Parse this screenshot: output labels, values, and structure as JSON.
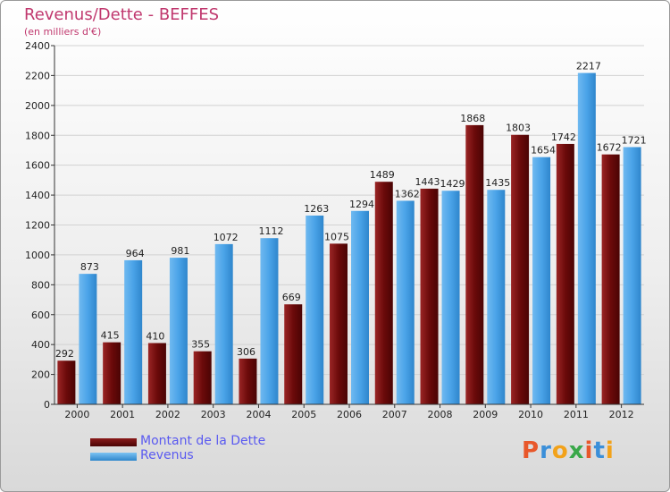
{
  "title": "Revenus/Dette - BEFFES",
  "subtitle": "(en milliers d'€)",
  "logo": "Proxiti",
  "colors": {
    "dette": "#6b0a0a",
    "revenus": "#4aa3e8",
    "title": "#c0386e",
    "legend_text": "#5a5af0"
  },
  "chart_data": {
    "type": "bar",
    "categories": [
      "2000",
      "2001",
      "2002",
      "2003",
      "2004",
      "2005",
      "2006",
      "2007",
      "2008",
      "2009",
      "2010",
      "2011",
      "2012"
    ],
    "series": [
      {
        "name": "Montant de la Dette",
        "values": [
          292,
          415,
          410,
          355,
          306,
          669,
          1075,
          1489,
          1443,
          1868,
          1803,
          1742,
          1672
        ]
      },
      {
        "name": "Revenus",
        "values": [
          873,
          964,
          981,
          1072,
          1112,
          1263,
          1294,
          1362,
          1429,
          1435,
          1654,
          2217,
          1721
        ]
      }
    ],
    "ylim": [
      0,
      2400
    ],
    "yticks": [
      0,
      200,
      400,
      600,
      800,
      1000,
      1200,
      1400,
      1600,
      1800,
      2000,
      2200,
      2400
    ],
    "grid": true,
    "legend": "bottom-left"
  }
}
